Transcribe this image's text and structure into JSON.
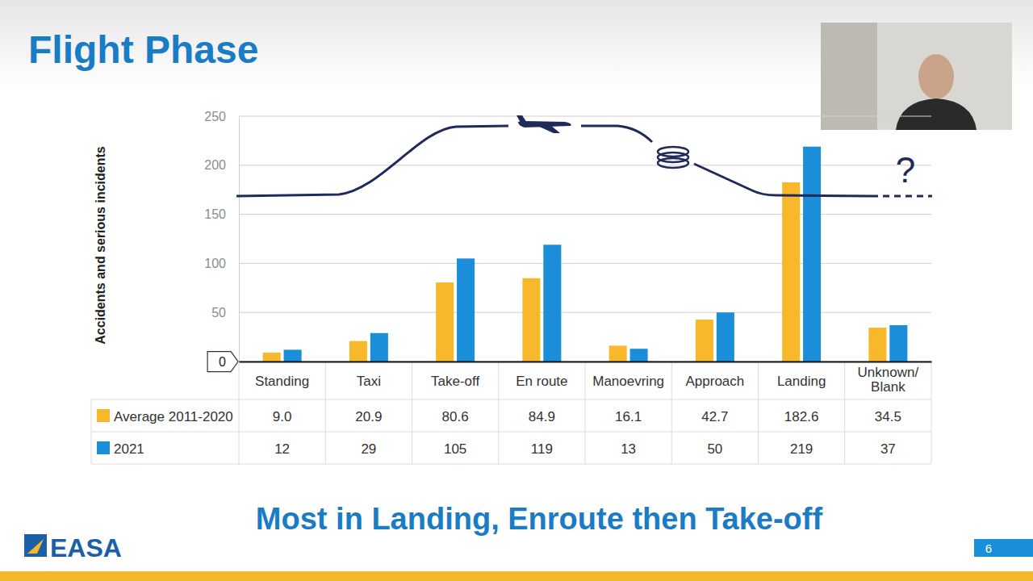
{
  "chart_data": {
    "type": "bar",
    "title": "Flight Phase",
    "subtitle": "Most in Landing, Enroute then Take-off",
    "y_label": "Accidents and serious incidents",
    "annotations": [
      "?"
    ],
    "categories": [
      "Standing",
      "Taxi",
      "Take-off",
      "En route",
      "Manoevring",
      "Approach",
      "Landing",
      "Unknown/Blank"
    ],
    "series": [
      {
        "name": "Average 2011-2020",
        "color": "#f7b92b",
        "values": [
          9.0,
          20.9,
          80.6,
          84.9,
          16.1,
          42.7,
          182.6,
          34.5
        ],
        "value_labels": [
          "9.0",
          "20.9",
          "80.6",
          "84.9",
          "16.1",
          "42.7",
          "182.6",
          "34.5"
        ]
      },
      {
        "name": "2021",
        "color": "#1a8ed8",
        "values": [
          12,
          29,
          105,
          119,
          13,
          50,
          219,
          37
        ]
      }
    ],
    "ylim": [
      0,
      250
    ],
    "yticks": [
      0,
      50,
      100,
      150,
      200,
      250
    ],
    "grid": true,
    "legend": "bottom",
    "data_labels": true
  },
  "footer": {
    "logo": "EASA",
    "page": "6"
  }
}
